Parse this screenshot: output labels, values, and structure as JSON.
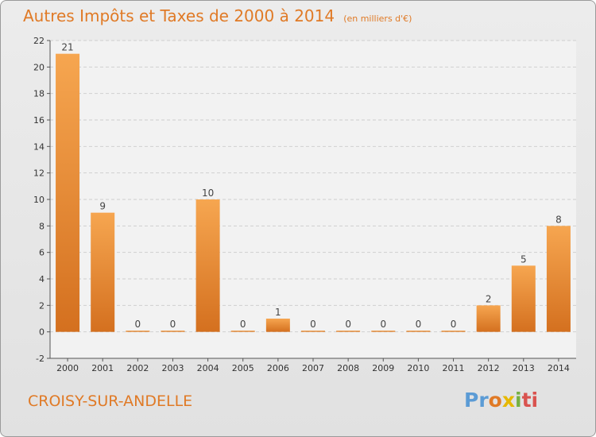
{
  "title": {
    "main": "Autres Impôts et Taxes de 2000 à 2014",
    "unit": "(en milliers d'€)"
  },
  "city": "CROISY-SUR-ANDELLE",
  "logo": {
    "l1": "Pr",
    "l2": "o",
    "l3": "x",
    "l4": "i",
    "l5": "ti"
  },
  "colors": {
    "bar_top": "#f6a650",
    "bar_bottom": "#d4701f",
    "accent": "#e07a26",
    "grid": "#cfcfcf"
  },
  "chart_data": {
    "type": "bar",
    "categories": [
      "2000",
      "2001",
      "2002",
      "2003",
      "2004",
      "2005",
      "2006",
      "2007",
      "2008",
      "2009",
      "2010",
      "2011",
      "2012",
      "2013",
      "2014"
    ],
    "values": [
      21,
      9,
      0,
      0,
      10,
      0,
      1,
      0,
      0,
      0,
      0,
      0,
      2,
      5,
      8
    ],
    "ylim": [
      -2,
      22
    ],
    "yticks": [
      -2,
      0,
      2,
      4,
      6,
      8,
      10,
      12,
      14,
      16,
      18,
      20,
      22
    ],
    "xlabel": "",
    "ylabel": "",
    "grid": "horizontal dashed"
  }
}
